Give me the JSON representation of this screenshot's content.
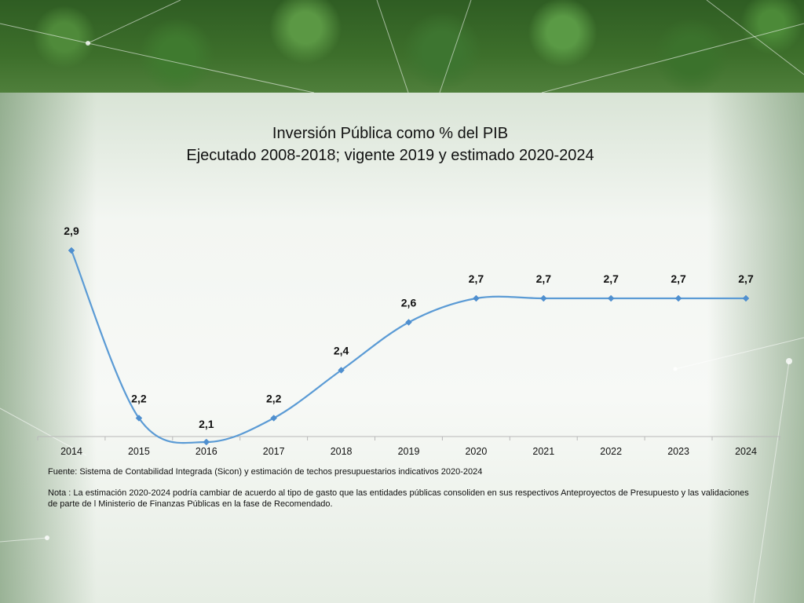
{
  "colors": {
    "line": "#5b9bd5",
    "point": "#4f8fcf",
    "axis": "#b8b8b8",
    "text": "#111111"
  },
  "title": "Inversión Pública como % del PIB",
  "subtitle": "Ejecutado 2008-2018; vigente 2019 y estimado 2020-2024",
  "source": "Fuente: Sistema de Contabilidad Integrada (Sicon) y estimación de techos presupuestarios  indicativos 2020-2024",
  "note": "Nota : La estimación 2020-2024 podría cambiar de acuerdo  al tipo de gasto que las entidades públicas consoliden en sus respectivos Anteproyectos de Presupuesto y las validaciones de parte de l Ministerio de Finanzas Públicas en la fase de Recomendado.",
  "chart_data": {
    "type": "line",
    "title": "Inversión Pública como % del PIB",
    "subtitle": "Ejecutado 2008-2018; vigente 2019 y estimado 2020-2024",
    "categories": [
      "2014",
      "2015",
      "2016",
      "2017",
      "2018",
      "2019",
      "2020",
      "2021",
      "2022",
      "2023",
      "2024"
    ],
    "series": [
      {
        "values": [
          2.9,
          2.2,
          2.1,
          2.2,
          2.4,
          2.6,
          2.7,
          2.7,
          2.7,
          2.7,
          2.7
        ],
        "labels": [
          "2,9",
          "2,2",
          "2,1",
          "2,2",
          "2,4",
          "2,6",
          "2,7",
          "2,7",
          "2,7",
          "2,7",
          "2,7"
        ]
      }
    ],
    "smooth": true,
    "markers": "diamond",
    "grid": false,
    "legend": "none"
  }
}
